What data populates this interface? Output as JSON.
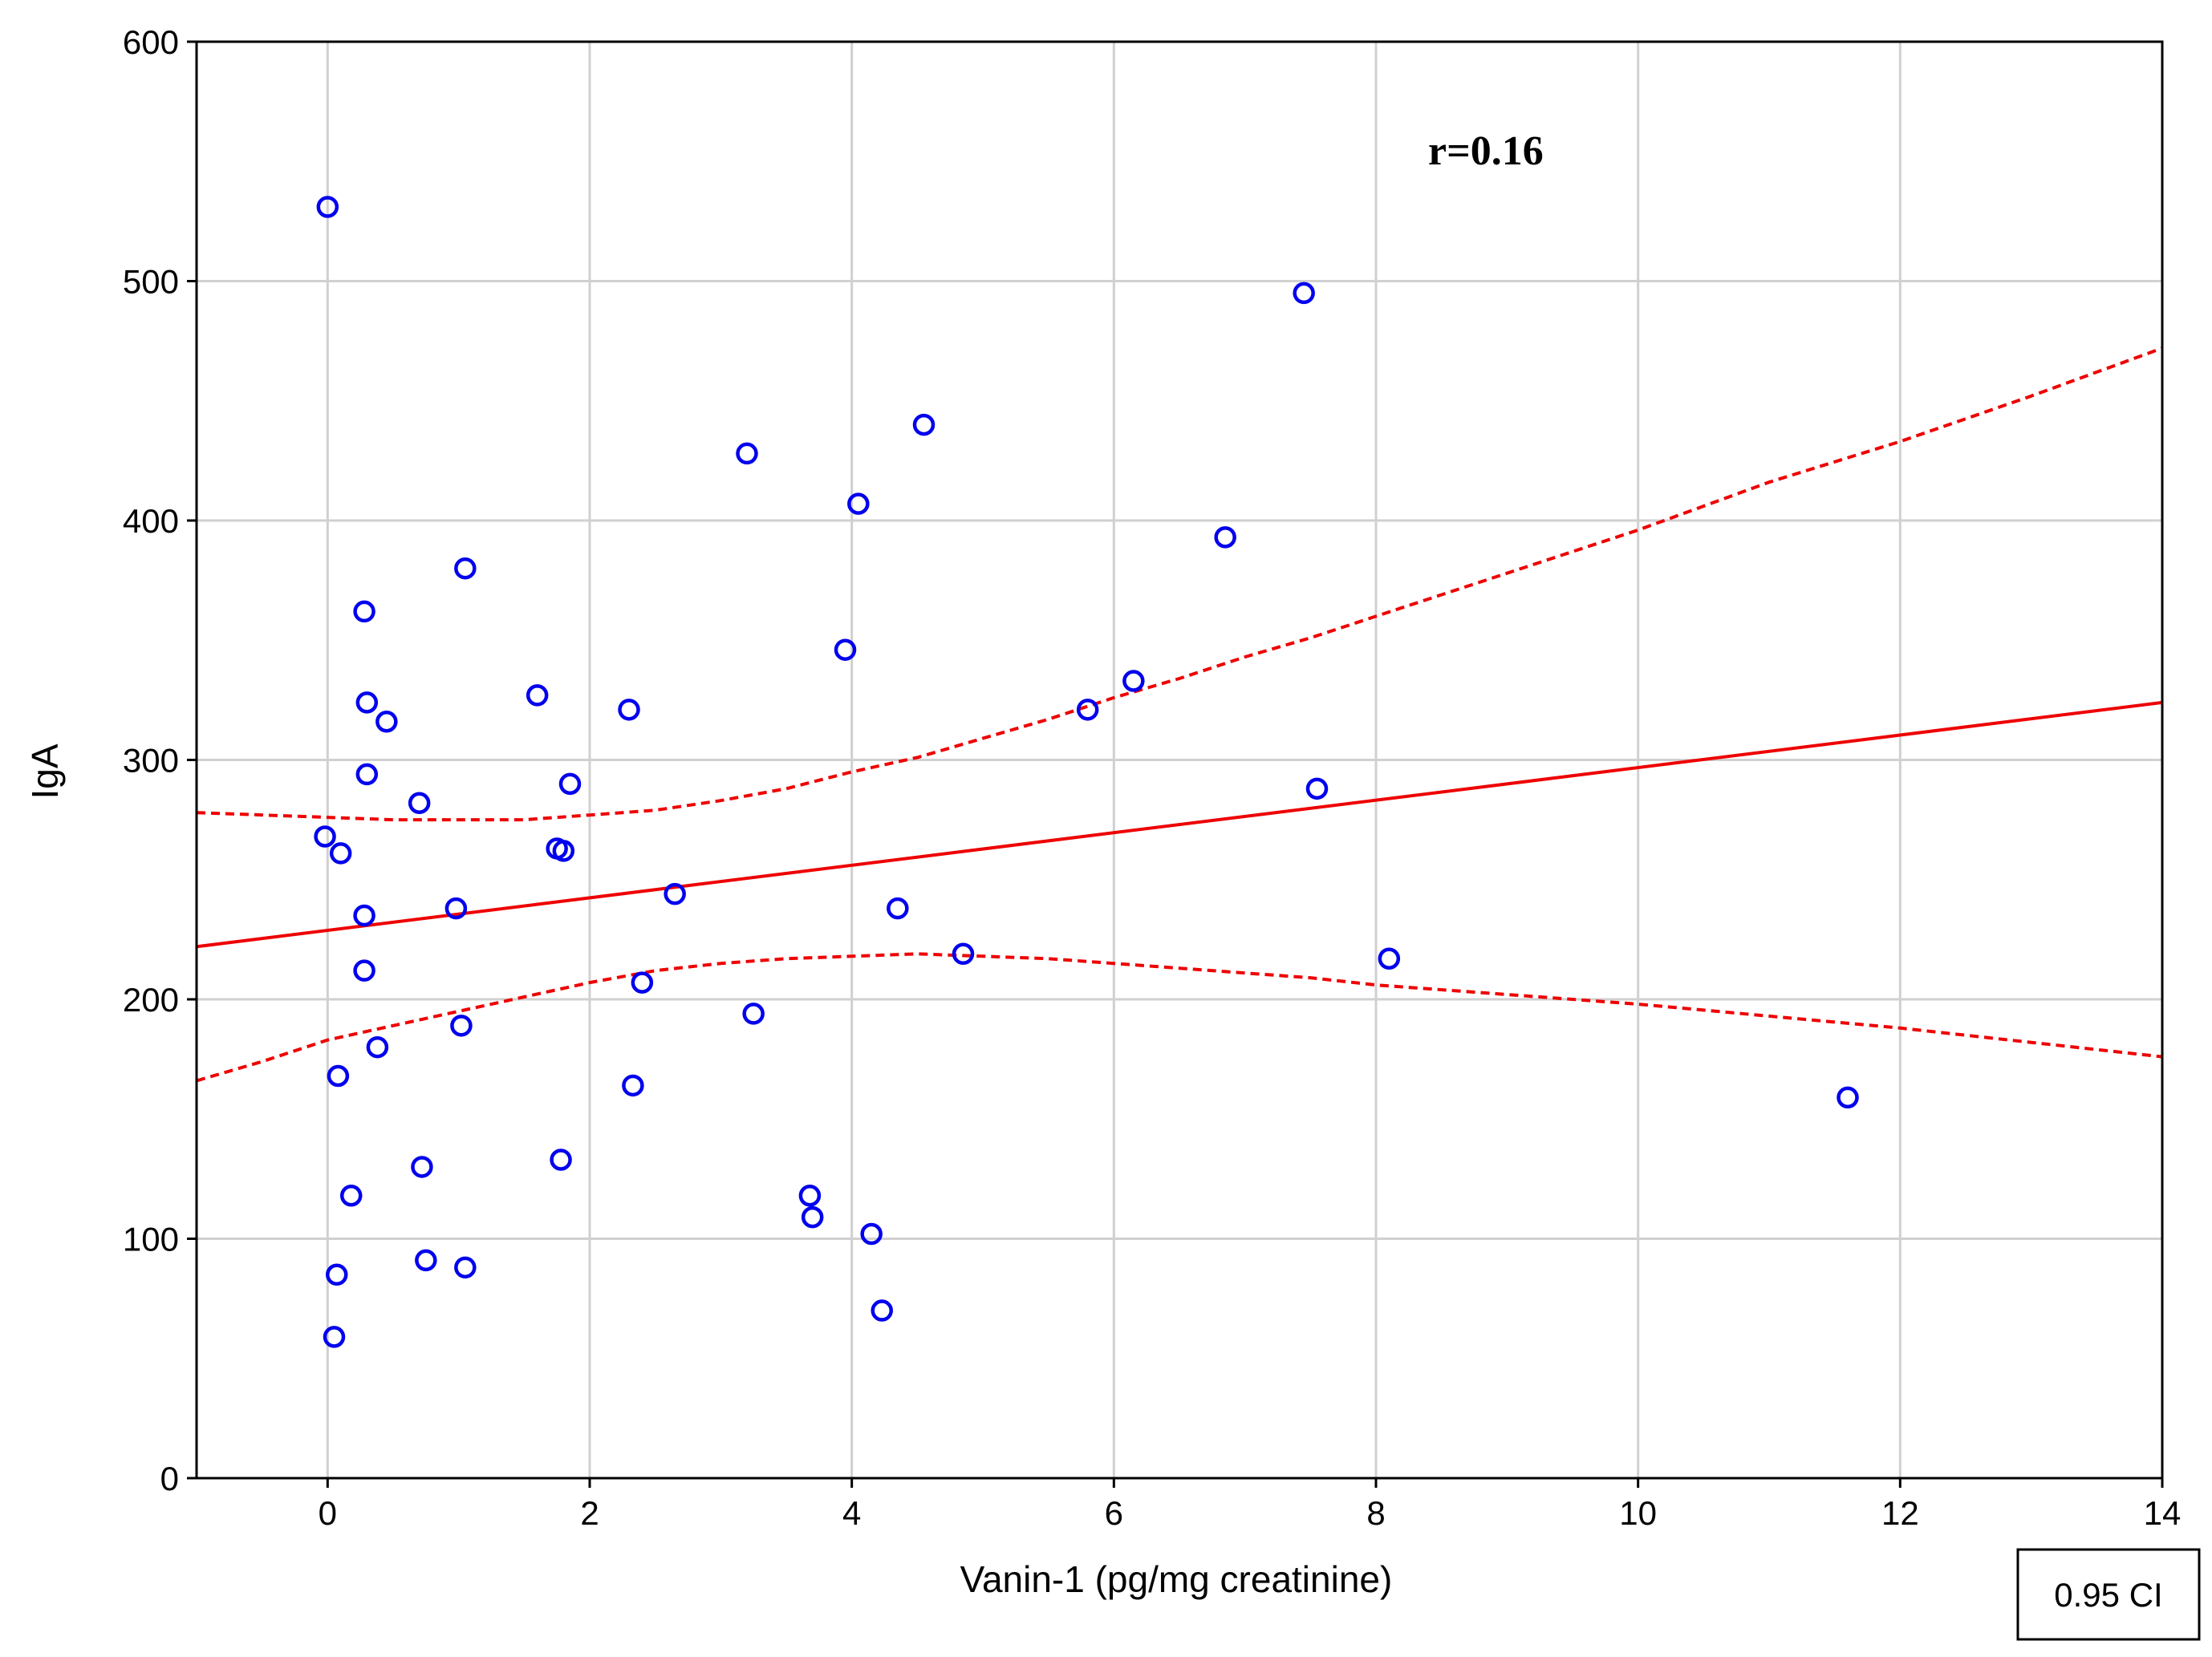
{
  "chart_data": {
    "type": "scatter",
    "title": "",
    "xlabel": "Vanin-1 (pg/mg creatinine)",
    "ylabel": "IgA",
    "xlim": [
      -1,
      14
    ],
    "ylim": [
      0,
      600
    ],
    "xticks": [
      0,
      2,
      4,
      6,
      8,
      10,
      12,
      14
    ],
    "yticks": [
      0,
      100,
      200,
      300,
      400,
      500,
      600
    ],
    "grid": true,
    "annotation": "r=0.16",
    "legend": "0.95 CI",
    "fit_line": {
      "x": [
        -1,
        14
      ],
      "y": [
        222,
        324
      ]
    },
    "ci_upper": {
      "x": [
        -1,
        0,
        0.5,
        1,
        1.5,
        2,
        2.5,
        3,
        3.5,
        4,
        4.5,
        5,
        5.5,
        6,
        6.5,
        7,
        7.5,
        8,
        9,
        10,
        11,
        12,
        13,
        14
      ],
      "y": [
        278,
        276,
        275,
        275,
        275,
        277,
        279,
        283,
        288,
        295,
        301,
        309,
        317,
        326,
        334,
        343,
        351,
        360,
        378,
        396,
        416,
        433,
        452,
        472
      ]
    },
    "ci_lower": {
      "x": [
        -1,
        -0.5,
        0,
        0.5,
        1,
        1.5,
        2,
        2.5,
        3,
        3.5,
        4,
        4.5,
        5,
        5.5,
        6,
        6.5,
        7,
        7.5,
        8,
        9,
        10,
        11,
        12,
        13,
        14
      ],
      "y": [
        166,
        174,
        183,
        189,
        195,
        201,
        207,
        212,
        215,
        217,
        218,
        219,
        218,
        217,
        215,
        213,
        211,
        209,
        206,
        202,
        198,
        193,
        188,
        182,
        176
      ]
    },
    "points": [
      {
        "x": 0.0,
        "y": 531
      },
      {
        "x": 7.45,
        "y": 495
      },
      {
        "x": 4.55,
        "y": 440
      },
      {
        "x": 3.2,
        "y": 428
      },
      {
        "x": 4.05,
        "y": 407
      },
      {
        "x": 6.85,
        "y": 393
      },
      {
        "x": 1.05,
        "y": 380
      },
      {
        "x": 0.28,
        "y": 362
      },
      {
        "x": 3.95,
        "y": 346
      },
      {
        "x": 6.15,
        "y": 333
      },
      {
        "x": 1.6,
        "y": 327
      },
      {
        "x": 0.3,
        "y": 324
      },
      {
        "x": 2.3,
        "y": 321
      },
      {
        "x": 5.8,
        "y": 321
      },
      {
        "x": 0.45,
        "y": 316
      },
      {
        "x": 0.3,
        "y": 294
      },
      {
        "x": 1.85,
        "y": 290
      },
      {
        "x": 7.55,
        "y": 288
      },
      {
        "x": 0.7,
        "y": 282
      },
      {
        "x": -0.02,
        "y": 268
      },
      {
        "x": 1.75,
        "y": 263
      },
      {
        "x": 1.8,
        "y": 262
      },
      {
        "x": 0.1,
        "y": 261
      },
      {
        "x": 2.65,
        "y": 244
      },
      {
        "x": 0.98,
        "y": 238
      },
      {
        "x": 4.35,
        "y": 238
      },
      {
        "x": 0.28,
        "y": 235
      },
      {
        "x": 4.85,
        "y": 219
      },
      {
        "x": 8.1,
        "y": 217
      },
      {
        "x": 0.28,
        "y": 212
      },
      {
        "x": 2.4,
        "y": 207
      },
      {
        "x": 3.25,
        "y": 194
      },
      {
        "x": 1.02,
        "y": 189
      },
      {
        "x": 0.38,
        "y": 180
      },
      {
        "x": 0.08,
        "y": 168
      },
      {
        "x": 2.33,
        "y": 164
      },
      {
        "x": 11.6,
        "y": 159
      },
      {
        "x": 1.78,
        "y": 133
      },
      {
        "x": 0.72,
        "y": 130
      },
      {
        "x": 0.18,
        "y": 118
      },
      {
        "x": 3.68,
        "y": 118
      },
      {
        "x": 3.7,
        "y": 109
      },
      {
        "x": 4.15,
        "y": 102
      },
      {
        "x": 0.75,
        "y": 91
      },
      {
        "x": 1.05,
        "y": 88
      },
      {
        "x": 0.07,
        "y": 85
      },
      {
        "x": 4.23,
        "y": 70
      },
      {
        "x": 0.05,
        "y": 59
      }
    ]
  }
}
